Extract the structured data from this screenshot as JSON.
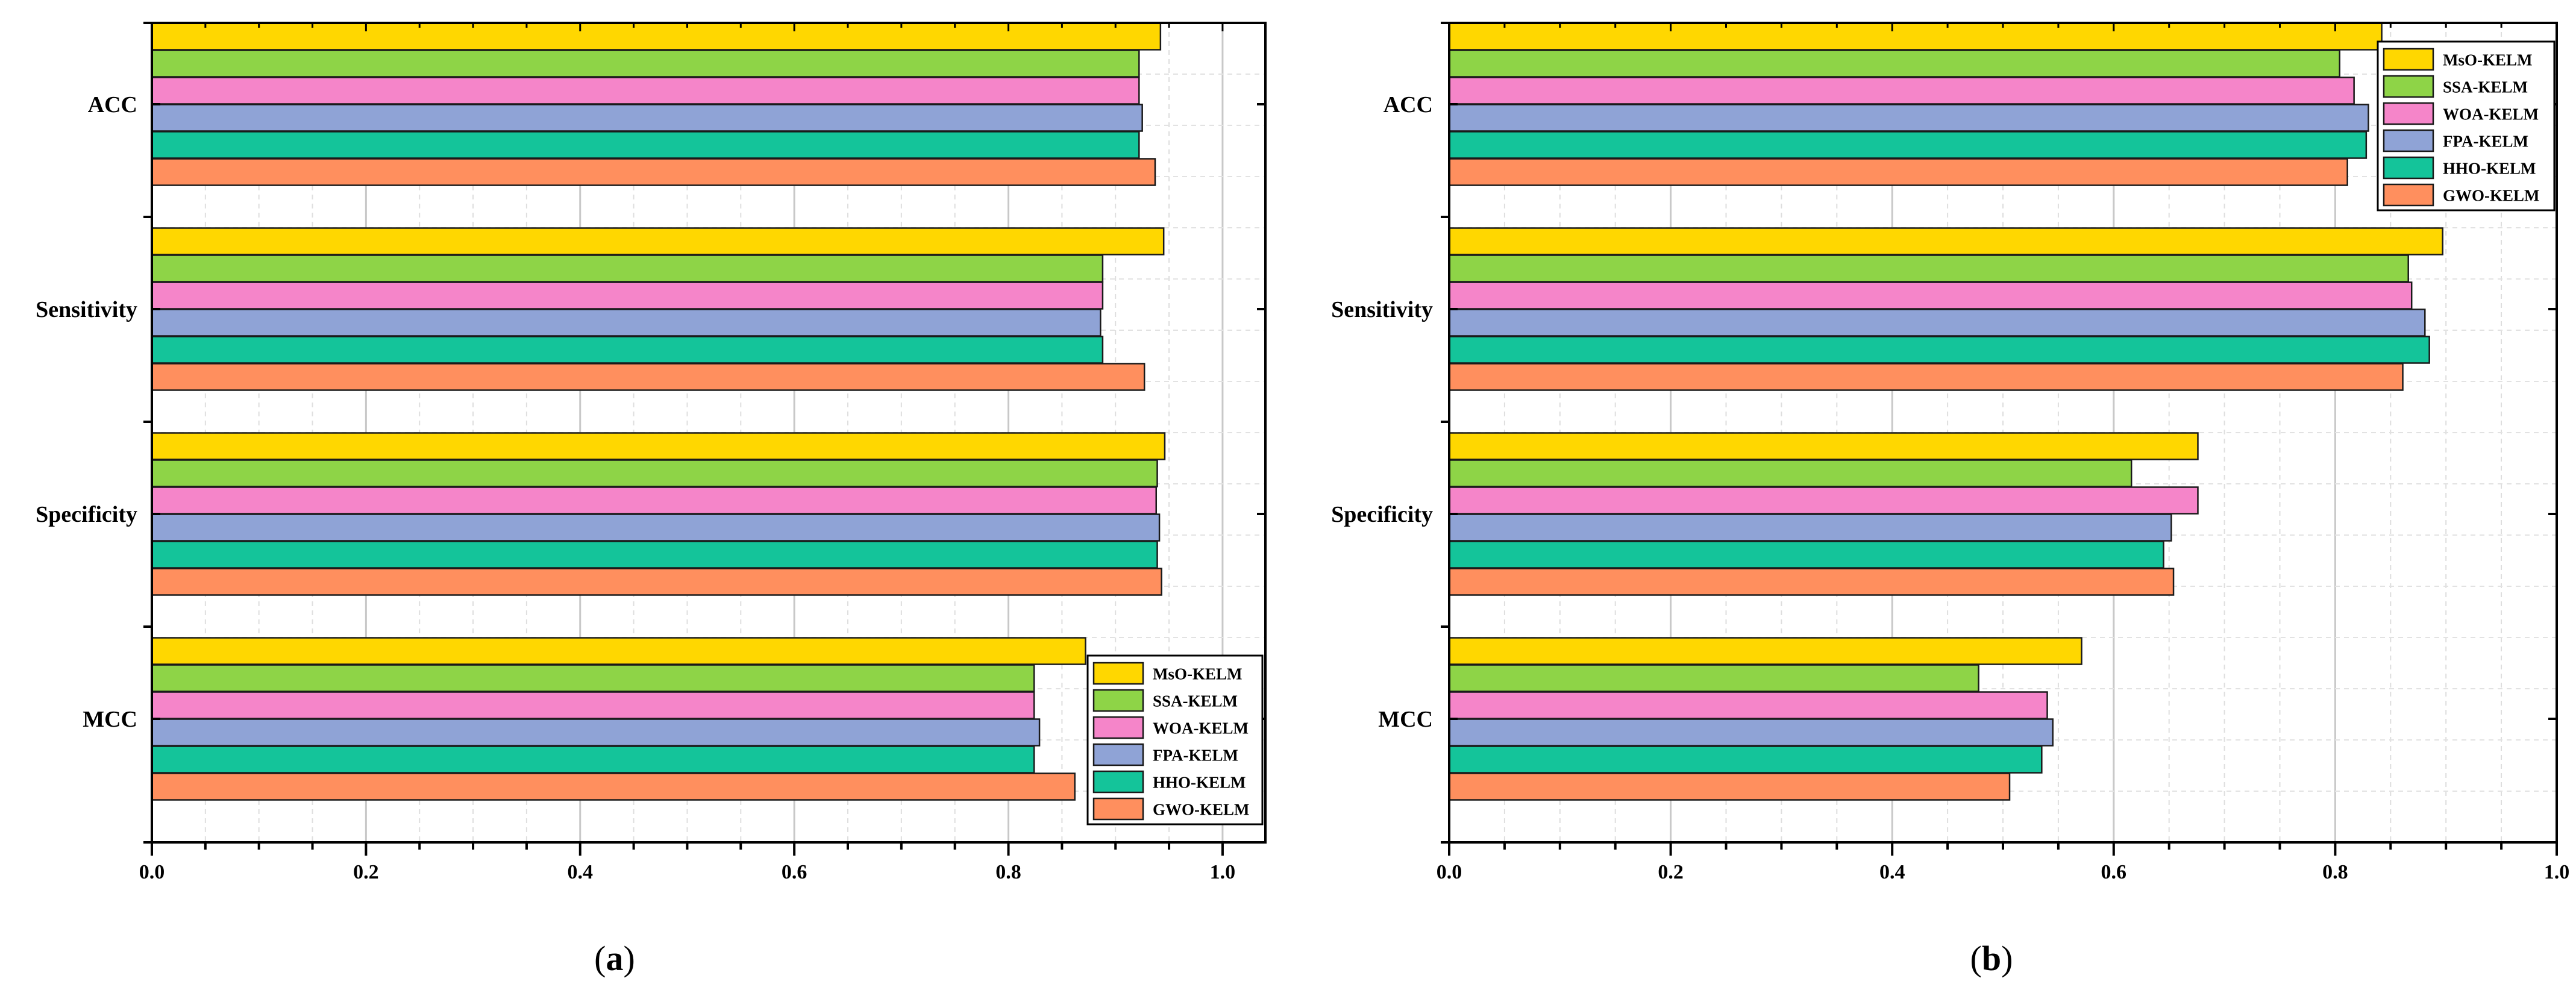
{
  "colors": {
    "MsO-KELM": "#FFD700",
    "SSA-KELM": "#8ED447",
    "WOA-KELM": "#F585C9",
    "FPA-KELM": "#8FA3D6",
    "HHO-KELM": "#14C49A",
    "GWO-KELM": "#FF8F5E"
  },
  "chart_data": [
    {
      "type": "bar",
      "orientation": "horizontal",
      "panel": "a",
      "panel_label": "(a)",
      "categories": [
        "ACC",
        "Sensitivity",
        "Specificity",
        "MCC"
      ],
      "series": [
        {
          "name": "MsO-KELM",
          "values": [
            0.942,
            0.945,
            0.946,
            0.872
          ]
        },
        {
          "name": "SSA-KELM",
          "values": [
            0.922,
            0.888,
            0.939,
            0.824
          ]
        },
        {
          "name": "WOA-KELM",
          "values": [
            0.922,
            0.888,
            0.938,
            0.824
          ]
        },
        {
          "name": "FPA-KELM",
          "values": [
            0.925,
            0.886,
            0.941,
            0.829
          ]
        },
        {
          "name": "HHO-KELM",
          "values": [
            0.922,
            0.888,
            0.939,
            0.824
          ]
        },
        {
          "name": "GWO-KELM",
          "values": [
            0.937,
            0.927,
            0.943,
            0.862
          ]
        }
      ],
      "xlim": [
        0,
        1.04
      ],
      "xticks": [
        "0.0",
        "0.2",
        "0.4",
        "0.6",
        "0.8",
        "1.0"
      ],
      "legend_position": "bottom-right",
      "grid": true
    },
    {
      "type": "bar",
      "orientation": "horizontal",
      "panel": "b",
      "panel_label": "(b)",
      "categories": [
        "ACC",
        "Sensitivity",
        "Specificity",
        "MCC"
      ],
      "series": [
        {
          "name": "MsO-KELM",
          "values": [
            0.842,
            0.897,
            0.676,
            0.571
          ]
        },
        {
          "name": "SSA-KELM",
          "values": [
            0.804,
            0.866,
            0.616,
            0.478
          ]
        },
        {
          "name": "WOA-KELM",
          "values": [
            0.817,
            0.869,
            0.676,
            0.54
          ]
        },
        {
          "name": "FPA-KELM",
          "values": [
            0.83,
            0.881,
            0.652,
            0.545
          ]
        },
        {
          "name": "HHO-KELM",
          "values": [
            0.828,
            0.885,
            0.645,
            0.535
          ]
        },
        {
          "name": "GWO-KELM",
          "values": [
            0.811,
            0.861,
            0.654,
            0.506
          ]
        }
      ],
      "xlim": [
        0,
        1.0
      ],
      "xticks": [
        "0.0",
        "0.2",
        "0.4",
        "0.6",
        "0.8",
        "1.0"
      ],
      "legend_position": "top-right",
      "grid": true
    }
  ]
}
